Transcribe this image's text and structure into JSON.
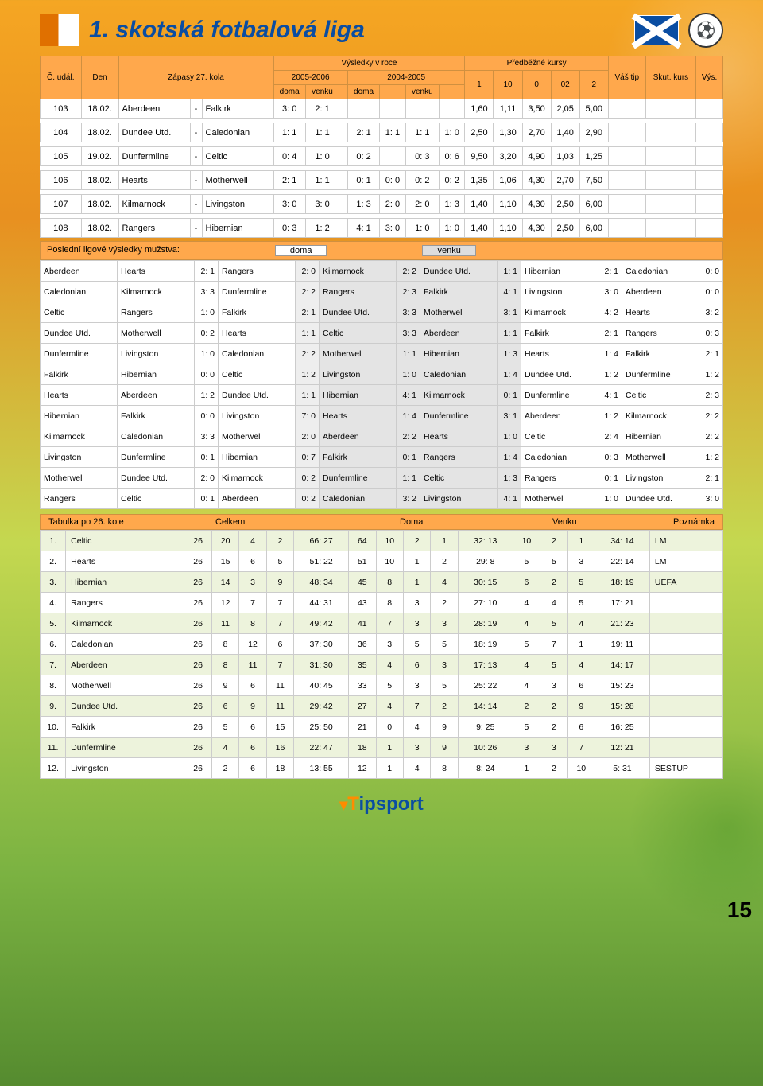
{
  "title": "1. skotská fotbalová liga",
  "page_number": "15",
  "logo_text": "Tipsport",
  "colors": {
    "accent_orange": "#ffa84c",
    "dark_blue": "#0a4da2"
  },
  "fixtures": {
    "headers": {
      "c_udal": "Č. udál.",
      "den": "Den",
      "zapasy": "Zápasy 27. kola",
      "vysledky": "Výsledky v roce",
      "y2005_2006": "2005-2006",
      "y2004_2005": "2004-2005",
      "doma": "doma",
      "venku": "venku",
      "predbezne": "Předběžné kursy",
      "k1": "1",
      "k10": "10",
      "k0": "0",
      "k02": "02",
      "k2": "2",
      "vas_tip": "Váš tip",
      "skut_kurs": "Skut. kurs",
      "vys": "Výs."
    },
    "rows": [
      {
        "n": "103",
        "d": "18.02.",
        "h": "Aberdeen",
        "a": "Falkirk",
        "s": [
          "3: 0",
          "2: 1",
          "",
          "",
          "",
          "",
          ""
        ],
        "o": [
          "1,60",
          "1,11",
          "3,50",
          "2,05",
          "5,00"
        ]
      },
      {
        "n": "104",
        "d": "18.02.",
        "h": "Dundee Utd.",
        "a": "Caledonian",
        "s": [
          "1: 1",
          "1: 1",
          "",
          "2: 1",
          "1: 1",
          "1: 1",
          "1: 0"
        ],
        "o": [
          "2,50",
          "1,30",
          "2,70",
          "1,40",
          "2,90"
        ]
      },
      {
        "n": "105",
        "d": "19.02.",
        "h": "Dunfermline",
        "a": "Celtic",
        "s": [
          "0: 4",
          "1: 0",
          "",
          "0: 2",
          "",
          "0: 3",
          "0: 6"
        ],
        "o": [
          "9,50",
          "3,20",
          "4,90",
          "1,03",
          "1,25"
        ]
      },
      {
        "n": "106",
        "d": "18.02.",
        "h": "Hearts",
        "a": "Motherwell",
        "s": [
          "2: 1",
          "1: 1",
          "",
          "0: 1",
          "0: 0",
          "0: 2",
          "0: 2"
        ],
        "o": [
          "1,35",
          "1,06",
          "4,30",
          "2,70",
          "7,50"
        ]
      },
      {
        "n": "107",
        "d": "18.02.",
        "h": "Kilmarnock",
        "a": "Livingston",
        "s": [
          "3: 0",
          "3: 0",
          "",
          "1: 3",
          "2: 0",
          "2: 0",
          "1: 3"
        ],
        "o": [
          "1,40",
          "1,10",
          "4,30",
          "2,50",
          "6,00"
        ]
      },
      {
        "n": "108",
        "d": "18.02.",
        "h": "Rangers",
        "a": "Hibernian",
        "s": [
          "0: 3",
          "1: 2",
          "",
          "4: 1",
          "3: 0",
          "1: 0",
          "1: 0"
        ],
        "o": [
          "1,40",
          "1,10",
          "4,30",
          "2,50",
          "6,00"
        ]
      }
    ]
  },
  "recent": {
    "title": "Poslední ligové výsledky mužstva:",
    "doma": "doma",
    "venku": "venku",
    "rows": [
      [
        "Aberdeen",
        "Hearts",
        "2: 1",
        "Rangers",
        "2: 0",
        "Kilmarnock",
        "2: 2",
        "Dundee Utd.",
        "1: 1",
        "Hibernian",
        "2: 1",
        "Caledonian",
        "0: 0"
      ],
      [
        "Caledonian",
        "Kilmarnock",
        "3: 3",
        "Dunfermline",
        "2: 2",
        "Rangers",
        "2: 3",
        "Falkirk",
        "4: 1",
        "Livingston",
        "3: 0",
        "Aberdeen",
        "0: 0"
      ],
      [
        "Celtic",
        "Rangers",
        "1: 0",
        "Falkirk",
        "2: 1",
        "Dundee Utd.",
        "3: 3",
        "Motherwell",
        "3: 1",
        "Kilmarnock",
        "4: 2",
        "Hearts",
        "3: 2"
      ],
      [
        "Dundee Utd.",
        "Motherwell",
        "0: 2",
        "Hearts",
        "1: 1",
        "Celtic",
        "3: 3",
        "Aberdeen",
        "1: 1",
        "Falkirk",
        "2: 1",
        "Rangers",
        "0: 3"
      ],
      [
        "Dunfermline",
        "Livingston",
        "1: 0",
        "Caledonian",
        "2: 2",
        "Motherwell",
        "1: 1",
        "Hibernian",
        "1: 3",
        "Hearts",
        "1: 4",
        "Falkirk",
        "2: 1"
      ],
      [
        "Falkirk",
        "Hibernian",
        "0: 0",
        "Celtic",
        "1: 2",
        "Livingston",
        "1: 0",
        "Caledonian",
        "1: 4",
        "Dundee Utd.",
        "1: 2",
        "Dunfermline",
        "1: 2"
      ],
      [
        "Hearts",
        "Aberdeen",
        "1: 2",
        "Dundee Utd.",
        "1: 1",
        "Hibernian",
        "4: 1",
        "Kilmarnock",
        "0: 1",
        "Dunfermline",
        "4: 1",
        "Celtic",
        "2: 3"
      ],
      [
        "Hibernian",
        "Falkirk",
        "0: 0",
        "Livingston",
        "7: 0",
        "Hearts",
        "1: 4",
        "Dunfermline",
        "3: 1",
        "Aberdeen",
        "1: 2",
        "Kilmarnock",
        "2: 2"
      ],
      [
        "Kilmarnock",
        "Caledonian",
        "3: 3",
        "Motherwell",
        "2: 0",
        "Aberdeen",
        "2: 2",
        "Hearts",
        "1: 0",
        "Celtic",
        "2: 4",
        "Hibernian",
        "2: 2"
      ],
      [
        "Livingston",
        "Dunfermline",
        "0: 1",
        "Hibernian",
        "0: 7",
        "Falkirk",
        "0: 1",
        "Rangers",
        "1: 4",
        "Caledonian",
        "0: 3",
        "Motherwell",
        "1: 2"
      ],
      [
        "Motherwell",
        "Dundee Utd.",
        "2: 0",
        "Kilmarnock",
        "0: 2",
        "Dunfermline",
        "1: 1",
        "Celtic",
        "1: 3",
        "Rangers",
        "0: 1",
        "Livingston",
        "2: 1"
      ],
      [
        "Rangers",
        "Celtic",
        "0: 1",
        "Aberdeen",
        "0: 2",
        "Caledonian",
        "3: 2",
        "Livingston",
        "4: 1",
        "Motherwell",
        "1: 0",
        "Dundee Utd.",
        "3: 0"
      ]
    ]
  },
  "standings": {
    "title": "Tabulka po 26. kole",
    "celkem": "Celkem",
    "doma": "Doma",
    "venku": "Venku",
    "poznamka": "Poznámka",
    "rows": [
      {
        "p": "1.",
        "t": "Celtic",
        "c": [
          "26",
          "20",
          "4",
          "2",
          "66: 27",
          "64"
        ],
        "d": [
          "10",
          "2",
          "1",
          "32: 13"
        ],
        "v": [
          "10",
          "2",
          "1",
          "34: 14"
        ],
        "n": "LM"
      },
      {
        "p": "2.",
        "t": "Hearts",
        "c": [
          "26",
          "15",
          "6",
          "5",
          "51: 22",
          "51"
        ],
        "d": [
          "10",
          "1",
          "2",
          "29: 8"
        ],
        "v": [
          "5",
          "5",
          "3",
          "22: 14"
        ],
        "n": "LM"
      },
      {
        "p": "3.",
        "t": "Hibernian",
        "c": [
          "26",
          "14",
          "3",
          "9",
          "48: 34",
          "45"
        ],
        "d": [
          "8",
          "1",
          "4",
          "30: 15"
        ],
        "v": [
          "6",
          "2",
          "5",
          "18: 19"
        ],
        "n": "UEFA"
      },
      {
        "p": "4.",
        "t": "Rangers",
        "c": [
          "26",
          "12",
          "7",
          "7",
          "44: 31",
          "43"
        ],
        "d": [
          "8",
          "3",
          "2",
          "27: 10"
        ],
        "v": [
          "4",
          "4",
          "5",
          "17: 21"
        ],
        "n": ""
      },
      {
        "p": "5.",
        "t": "Kilmarnock",
        "c": [
          "26",
          "11",
          "8",
          "7",
          "49: 42",
          "41"
        ],
        "d": [
          "7",
          "3",
          "3",
          "28: 19"
        ],
        "v": [
          "4",
          "5",
          "4",
          "21: 23"
        ],
        "n": ""
      },
      {
        "p": "6.",
        "t": "Caledonian",
        "c": [
          "26",
          "8",
          "12",
          "6",
          "37: 30",
          "36"
        ],
        "d": [
          "3",
          "5",
          "5",
          "18: 19"
        ],
        "v": [
          "5",
          "7",
          "1",
          "19: 11"
        ],
        "n": ""
      },
      {
        "p": "7.",
        "t": "Aberdeen",
        "c": [
          "26",
          "8",
          "11",
          "7",
          "31: 30",
          "35"
        ],
        "d": [
          "4",
          "6",
          "3",
          "17: 13"
        ],
        "v": [
          "4",
          "5",
          "4",
          "14: 17"
        ],
        "n": ""
      },
      {
        "p": "8.",
        "t": "Motherwell",
        "c": [
          "26",
          "9",
          "6",
          "11",
          "40: 45",
          "33"
        ],
        "d": [
          "5",
          "3",
          "5",
          "25: 22"
        ],
        "v": [
          "4",
          "3",
          "6",
          "15: 23"
        ],
        "n": ""
      },
      {
        "p": "9.",
        "t": "Dundee Utd.",
        "c": [
          "26",
          "6",
          "9",
          "11",
          "29: 42",
          "27"
        ],
        "d": [
          "4",
          "7",
          "2",
          "14: 14"
        ],
        "v": [
          "2",
          "2",
          "9",
          "15: 28"
        ],
        "n": ""
      },
      {
        "p": "10.",
        "t": "Falkirk",
        "c": [
          "26",
          "5",
          "6",
          "15",
          "25: 50",
          "21"
        ],
        "d": [
          "0",
          "4",
          "9",
          "9: 25"
        ],
        "v": [
          "5",
          "2",
          "6",
          "16: 25"
        ],
        "n": ""
      },
      {
        "p": "11.",
        "t": "Dunfermline",
        "c": [
          "26",
          "4",
          "6",
          "16",
          "22: 47",
          "18"
        ],
        "d": [
          "1",
          "3",
          "9",
          "10: 26"
        ],
        "v": [
          "3",
          "3",
          "7",
          "12: 21"
        ],
        "n": ""
      },
      {
        "p": "12.",
        "t": "Livingston",
        "c": [
          "26",
          "2",
          "6",
          "18",
          "13: 55",
          "12"
        ],
        "d": [
          "1",
          "4",
          "8",
          "8: 24"
        ],
        "v": [
          "1",
          "2",
          "10",
          "5: 31"
        ],
        "n": "SESTUP"
      }
    ]
  }
}
